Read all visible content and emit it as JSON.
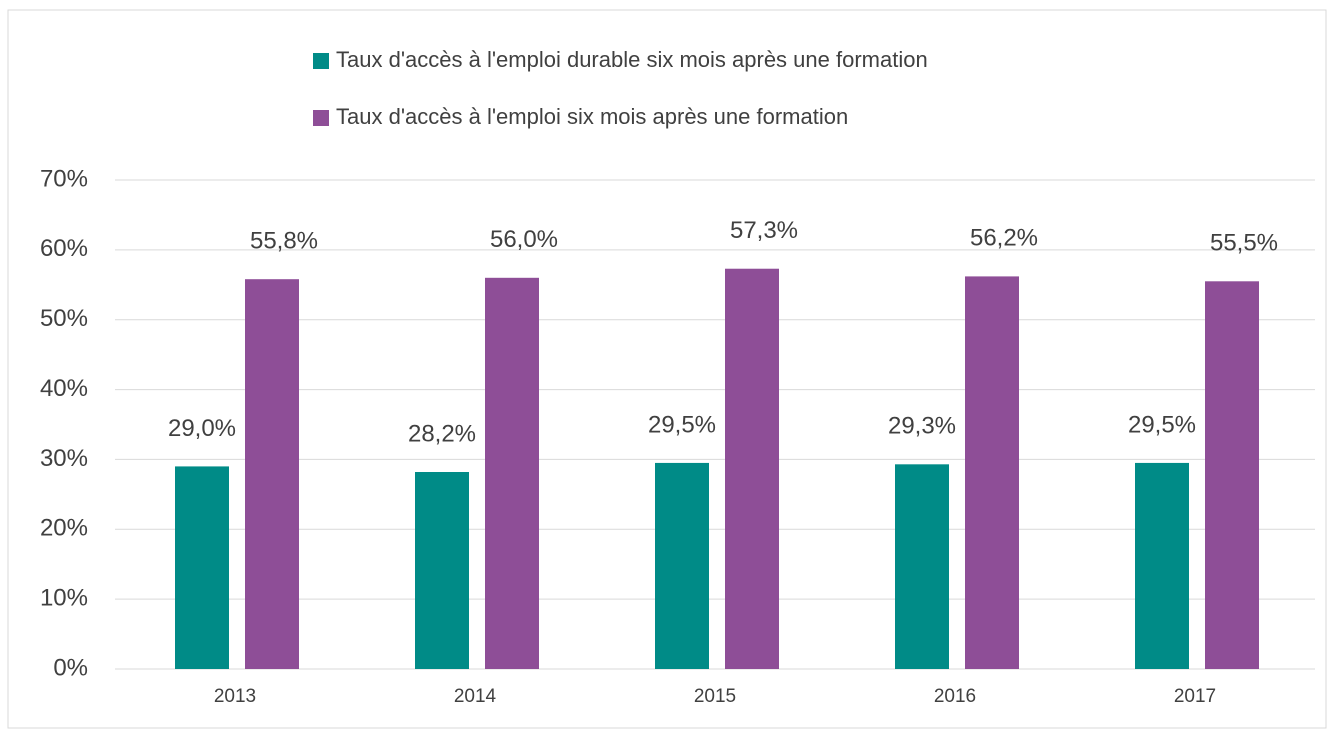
{
  "chart_data": {
    "type": "bar",
    "categories": [
      "2013",
      "2014",
      "2015",
      "2016",
      "2017"
    ],
    "series": [
      {
        "name": "Taux d'accès à l'emploi durable six mois après une formation",
        "color": "#008b87",
        "values": [
          29.0,
          28.2,
          29.5,
          29.3,
          29.5
        ],
        "value_labels": [
          "29,0%",
          "28,2%",
          "29,5%",
          "29,3%",
          "29,5%"
        ]
      },
      {
        "name": "Taux d'accès à l'emploi six mois après une formation",
        "color": "#8e4e97",
        "values": [
          55.8,
          56.0,
          57.3,
          56.2,
          55.5
        ],
        "value_labels": [
          "55,8%",
          "56,0%",
          "57,3%",
          "56,2%",
          "55,5%"
        ]
      }
    ],
    "ylim": [
      0,
      70
    ],
    "yticks": [
      {
        "value": 0,
        "label": "0%"
      },
      {
        "value": 10,
        "label": "10%"
      },
      {
        "value": 20,
        "label": "20%"
      },
      {
        "value": 30,
        "label": "30%"
      },
      {
        "value": 40,
        "label": "40%"
      },
      {
        "value": 50,
        "label": "50%"
      },
      {
        "value": 60,
        "label": "60%"
      },
      {
        "value": 70,
        "label": "70%"
      }
    ],
    "grid": true,
    "legend": "top"
  }
}
